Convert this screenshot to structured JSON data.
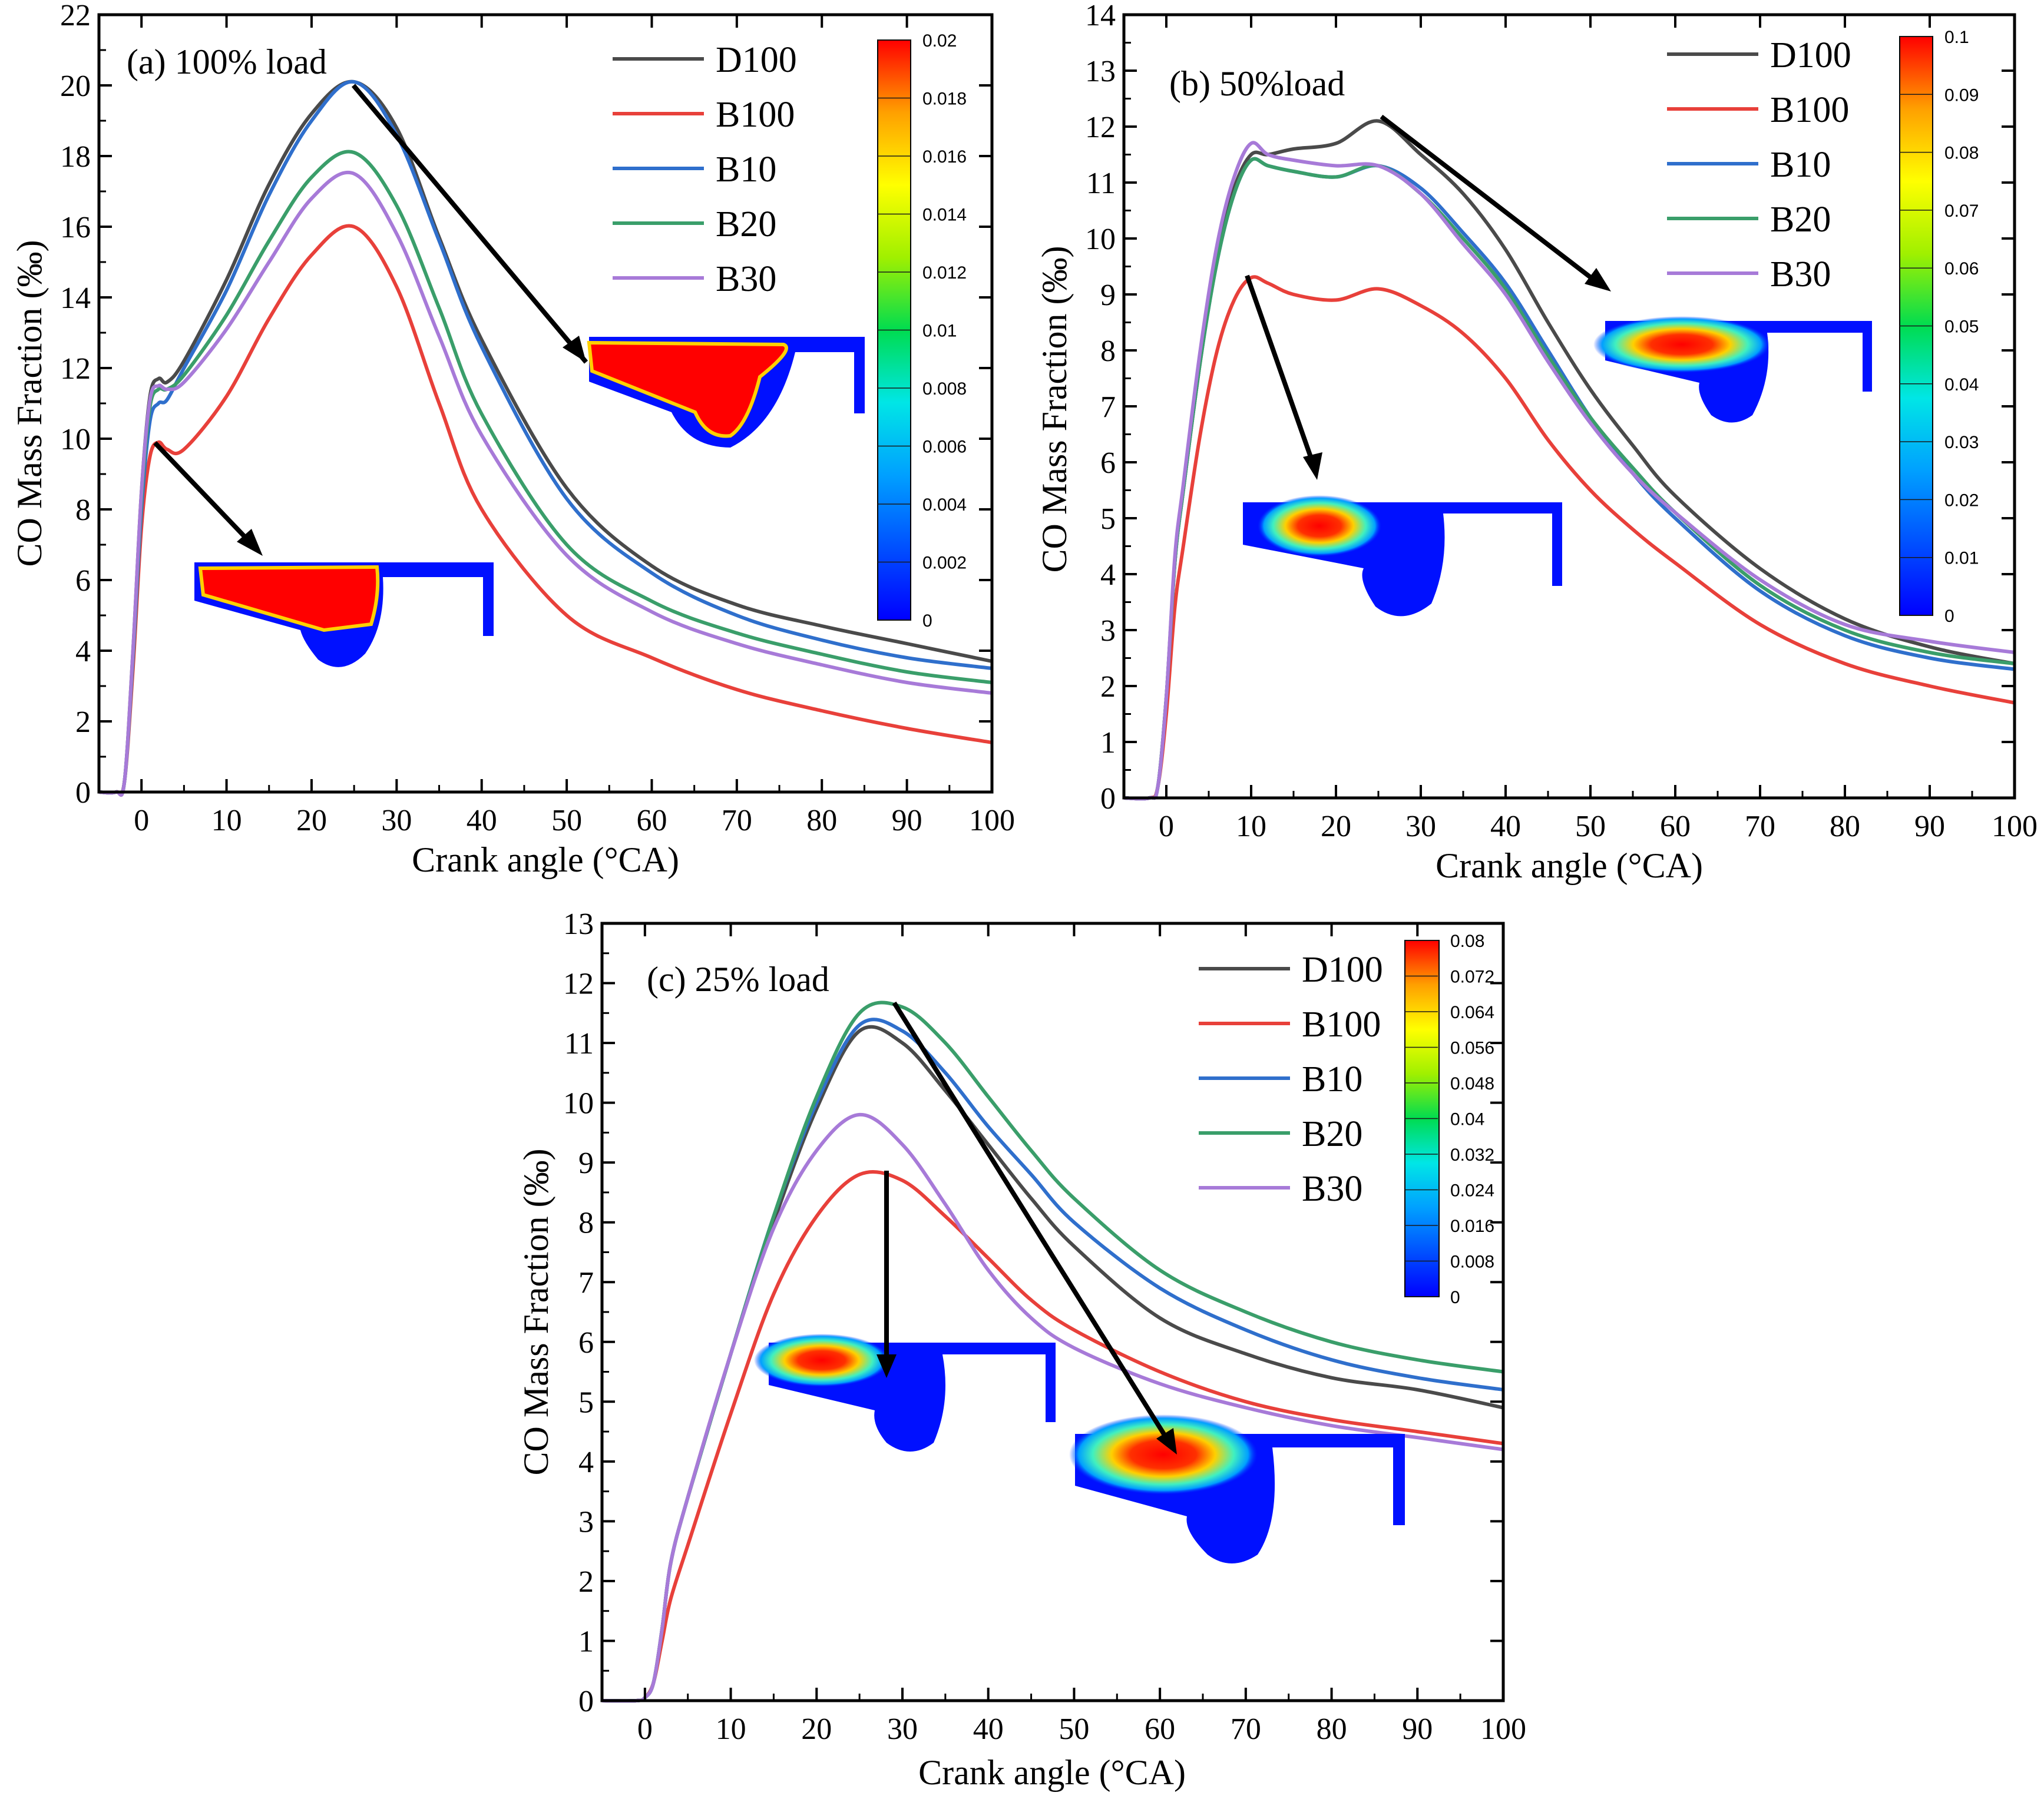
{
  "chart_data": [
    {
      "type": "line",
      "id": "a",
      "title": "(a) 100% load",
      "xlabel": "Crank angle (°CA)",
      "ylabel": "CO Mass Fraction (‰)",
      "xlim": [
        -5,
        100
      ],
      "ylim": [
        0,
        22
      ],
      "xticks": [
        0,
        10,
        20,
        30,
        40,
        50,
        60,
        70,
        80,
        90,
        100
      ],
      "yticks": [
        0,
        2,
        4,
        6,
        8,
        10,
        12,
        14,
        16,
        18,
        20,
        22
      ],
      "colorbar": {
        "min": 0,
        "max": 0.02,
        "labels": [
          "0.02",
          "0.018",
          "0.016",
          "0.014",
          "0.012",
          "0.01",
          "0.008",
          "0.006",
          "0.004",
          "0.002",
          "0"
        ]
      },
      "series": [
        {
          "name": "D100",
          "color": "#4a4a4a",
          "x": [
            -5,
            -3,
            -2,
            -1,
            0,
            1,
            2,
            3,
            5,
            10,
            15,
            20,
            25,
            30,
            35,
            40,
            50,
            60,
            70,
            80,
            90,
            100
          ],
          "values": [
            0,
            0,
            0.3,
            4,
            8.5,
            11.2,
            11.7,
            11.6,
            12.2,
            14.5,
            17.2,
            19.2,
            20.1,
            18.8,
            15.7,
            12.8,
            8.6,
            6.4,
            5.3,
            4.7,
            4.2,
            3.7
          ]
        },
        {
          "name": "B100",
          "color": "#e8403a",
          "x": [
            -5,
            -3,
            -2,
            -1,
            0,
            1,
            2,
            3,
            5,
            10,
            15,
            20,
            25,
            30,
            35,
            40,
            50,
            60,
            70,
            80,
            90,
            100
          ],
          "values": [
            0,
            0,
            0.3,
            3.5,
            7.5,
            9.5,
            9.9,
            9.7,
            9.7,
            11.2,
            13.4,
            15.2,
            16,
            14.3,
            11,
            8,
            5,
            3.8,
            2.9,
            2.3,
            1.8,
            1.4
          ]
        },
        {
          "name": "B10",
          "color": "#2f6fcc",
          "x": [
            -5,
            -3,
            -2,
            -1,
            0,
            1,
            2,
            3,
            5,
            10,
            15,
            20,
            25,
            30,
            35,
            40,
            50,
            60,
            70,
            80,
            90,
            100
          ],
          "values": [
            0,
            0,
            0.3,
            3.8,
            8,
            10.5,
            11,
            11.1,
            12,
            14.2,
            16.9,
            19,
            20.1,
            18.6,
            15.6,
            12.6,
            8.3,
            6.2,
            5,
            4.3,
            3.8,
            3.5
          ]
        },
        {
          "name": "B20",
          "color": "#3a9e6a",
          "x": [
            -5,
            -3,
            -2,
            -1,
            0,
            1,
            2,
            3,
            5,
            10,
            15,
            20,
            25,
            30,
            35,
            40,
            50,
            60,
            70,
            80,
            90,
            100
          ],
          "values": [
            0,
            0,
            0.3,
            3.9,
            8.3,
            10.9,
            11.4,
            11.4,
            11.8,
            13.5,
            15.6,
            17.4,
            18.1,
            16.6,
            13.7,
            10.7,
            7,
            5.4,
            4.5,
            3.9,
            3.4,
            3.1
          ]
        },
        {
          "name": "B30",
          "color": "#a77ad8",
          "x": [
            -5,
            -3,
            -2,
            -1,
            0,
            1,
            2,
            3,
            5,
            10,
            15,
            20,
            25,
            30,
            35,
            40,
            50,
            60,
            70,
            80,
            90,
            100
          ],
          "values": [
            0,
            0,
            0.3,
            4,
            8.5,
            11.1,
            11.5,
            11.4,
            11.6,
            13.1,
            15,
            16.8,
            17.5,
            15.8,
            12.9,
            10.1,
            6.7,
            5.1,
            4.2,
            3.6,
            3.1,
            2.8
          ]
        }
      ]
    },
    {
      "type": "line",
      "id": "b",
      "title": "(b) 50%load",
      "xlabel": "Crank angle (°CA)",
      "ylabel": "CO Mass Fraction (‰)",
      "xlim": [
        -5,
        100
      ],
      "ylim": [
        0,
        14
      ],
      "xticks": [
        0,
        10,
        20,
        30,
        40,
        50,
        60,
        70,
        80,
        90,
        100
      ],
      "yticks": [
        0,
        1,
        2,
        3,
        4,
        5,
        6,
        7,
        8,
        9,
        10,
        11,
        12,
        13,
        14
      ],
      "colorbar": {
        "min": 0,
        "max": 0.1,
        "labels": [
          "0.1",
          "0.09",
          "0.08",
          "0.07",
          "0.06",
          "0.05",
          "0.04",
          "0.03",
          "0.02",
          "0.01",
          "0"
        ]
      },
      "series": [
        {
          "name": "D100",
          "color": "#4a4a4a",
          "x": [
            -5,
            -2,
            -1,
            0,
            1,
            2,
            4,
            6,
            8,
            10,
            12,
            15,
            20,
            25,
            30,
            35,
            40,
            45,
            50,
            55,
            60,
            70,
            80,
            90,
            100
          ],
          "values": [
            0,
            0,
            0.2,
            1.8,
            4.2,
            5.5,
            7.8,
            9.7,
            10.9,
            11.5,
            11.5,
            11.6,
            11.7,
            12.1,
            11.5,
            10.8,
            9.8,
            8.5,
            7.3,
            6.3,
            5.4,
            4.1,
            3.2,
            2.7,
            2.4
          ]
        },
        {
          "name": "B100",
          "color": "#e8403a",
          "x": [
            -5,
            -2,
            -1,
            0,
            1,
            2,
            4,
            6,
            8,
            10,
            12,
            15,
            20,
            25,
            30,
            35,
            40,
            45,
            50,
            55,
            60,
            70,
            80,
            90,
            100
          ],
          "values": [
            0,
            0,
            0.2,
            1.5,
            3.4,
            4.5,
            6.5,
            8,
            8.9,
            9.3,
            9.2,
            9,
            8.9,
            9.1,
            8.8,
            8.3,
            7.5,
            6.4,
            5.5,
            4.8,
            4.2,
            3.1,
            2.4,
            2,
            1.7
          ]
        },
        {
          "name": "B10",
          "color": "#2f6fcc",
          "x": [
            -5,
            -2,
            -1,
            0,
            1,
            2,
            4,
            6,
            8,
            10,
            12,
            15,
            20,
            25,
            30,
            35,
            40,
            45,
            50,
            55,
            60,
            70,
            80,
            90,
            100
          ],
          "values": [
            0,
            0,
            0.2,
            1.8,
            4.2,
            5.5,
            7.8,
            9.6,
            10.8,
            11.4,
            11.3,
            11.2,
            11.1,
            11.3,
            10.9,
            10.1,
            9.2,
            8,
            6.8,
            5.8,
            5,
            3.7,
            2.9,
            2.5,
            2.3
          ]
        },
        {
          "name": "B20",
          "color": "#3a9e6a",
          "x": [
            -5,
            -2,
            -1,
            0,
            1,
            2,
            4,
            6,
            8,
            10,
            12,
            15,
            20,
            25,
            30,
            35,
            40,
            45,
            50,
            55,
            60,
            70,
            80,
            90,
            100
          ],
          "values": [
            0,
            0,
            0.2,
            1.8,
            4.2,
            5.5,
            7.8,
            9.6,
            10.8,
            11.4,
            11.3,
            11.2,
            11.1,
            11.3,
            10.8,
            10,
            9.1,
            7.9,
            6.8,
            5.9,
            5.1,
            3.8,
            3,
            2.6,
            2.4
          ]
        },
        {
          "name": "B30",
          "color": "#a77ad8",
          "x": [
            -5,
            -2,
            -1,
            0,
            1,
            2,
            4,
            6,
            8,
            10,
            12,
            15,
            20,
            25,
            30,
            35,
            40,
            45,
            50,
            55,
            60,
            70,
            80,
            90,
            100
          ],
          "values": [
            0,
            0,
            0.2,
            1.8,
            4.3,
            5.6,
            8,
            9.9,
            11.1,
            11.7,
            11.5,
            11.4,
            11.3,
            11.3,
            10.8,
            9.9,
            9,
            7.8,
            6.7,
            5.8,
            5.1,
            3.9,
            3.1,
            2.8,
            2.6
          ]
        }
      ]
    },
    {
      "type": "line",
      "id": "c",
      "title": "(c) 25% load",
      "xlabel": "Crank angle (°CA)",
      "ylabel": "CO Mass Fraction (‰)",
      "xlim": [
        -5,
        100
      ],
      "ylim": [
        0,
        13
      ],
      "xticks": [
        0,
        10,
        20,
        30,
        40,
        50,
        60,
        70,
        80,
        90,
        100
      ],
      "yticks": [
        0,
        1,
        2,
        3,
        4,
        5,
        6,
        7,
        8,
        9,
        10,
        11,
        12,
        13
      ],
      "colorbar": {
        "min": 0,
        "max": 0.08,
        "labels": [
          "0.08",
          "0.072",
          "0.064",
          "0.056",
          "0.048",
          "0.04",
          "0.032",
          "0.024",
          "0.016",
          "0.008",
          "0"
        ]
      },
      "series": [
        {
          "name": "D100",
          "color": "#4a4a4a",
          "x": [
            -5,
            -1,
            0,
            1,
            2,
            3,
            5,
            10,
            15,
            20,
            25,
            30,
            35,
            40,
            45,
            50,
            60,
            70,
            80,
            90,
            100
          ],
          "values": [
            0,
            0,
            0.05,
            0.3,
            1.2,
            2.3,
            3.4,
            5.8,
            8,
            9.9,
            11.2,
            11,
            10.2,
            9.3,
            8.4,
            7.6,
            6.4,
            5.8,
            5.4,
            5.2,
            4.9
          ]
        },
        {
          "name": "B100",
          "color": "#e8403a",
          "x": [
            -5,
            -1,
            0,
            1,
            2,
            3,
            5,
            10,
            15,
            20,
            25,
            30,
            35,
            40,
            45,
            50,
            60,
            70,
            80,
            90,
            100
          ],
          "values": [
            0,
            0,
            0.05,
            0.3,
            1,
            1.7,
            2.6,
            4.8,
            6.8,
            8.1,
            8.8,
            8.7,
            8.1,
            7.4,
            6.7,
            6.2,
            5.5,
            5,
            4.7,
            4.5,
            4.3
          ]
        },
        {
          "name": "B10",
          "color": "#2f6fcc",
          "x": [
            -5,
            -1,
            0,
            1,
            2,
            3,
            5,
            10,
            15,
            20,
            25,
            30,
            35,
            40,
            45,
            50,
            60,
            70,
            80,
            90,
            100
          ],
          "values": [
            0,
            0,
            0.05,
            0.3,
            1.2,
            2.3,
            3.4,
            5.8,
            8.1,
            10,
            11.3,
            11.2,
            10.5,
            9.6,
            8.8,
            8,
            6.9,
            6.2,
            5.7,
            5.4,
            5.2
          ]
        },
        {
          "name": "B20",
          "color": "#3a9e6a",
          "x": [
            -5,
            -1,
            0,
            1,
            2,
            3,
            5,
            10,
            15,
            20,
            25,
            30,
            35,
            40,
            45,
            50,
            60,
            70,
            80,
            90,
            100
          ],
          "values": [
            0,
            0,
            0.05,
            0.3,
            1.2,
            2.3,
            3.4,
            5.8,
            8.1,
            10.1,
            11.5,
            11.6,
            11,
            10.1,
            9.2,
            8.4,
            7.2,
            6.5,
            6,
            5.7,
            5.5
          ]
        },
        {
          "name": "B30",
          "color": "#a77ad8",
          "x": [
            -5,
            -1,
            0,
            1,
            2,
            3,
            5,
            10,
            15,
            20,
            25,
            30,
            35,
            40,
            45,
            50,
            60,
            70,
            80,
            90,
            100
          ],
          "values": [
            0,
            0,
            0.05,
            0.3,
            1.2,
            2.3,
            3.4,
            5.8,
            7.9,
            9.2,
            9.8,
            9.3,
            8.3,
            7.2,
            6.4,
            5.9,
            5.3,
            4.9,
            4.6,
            4.4,
            4.2
          ]
        }
      ]
    }
  ]
}
